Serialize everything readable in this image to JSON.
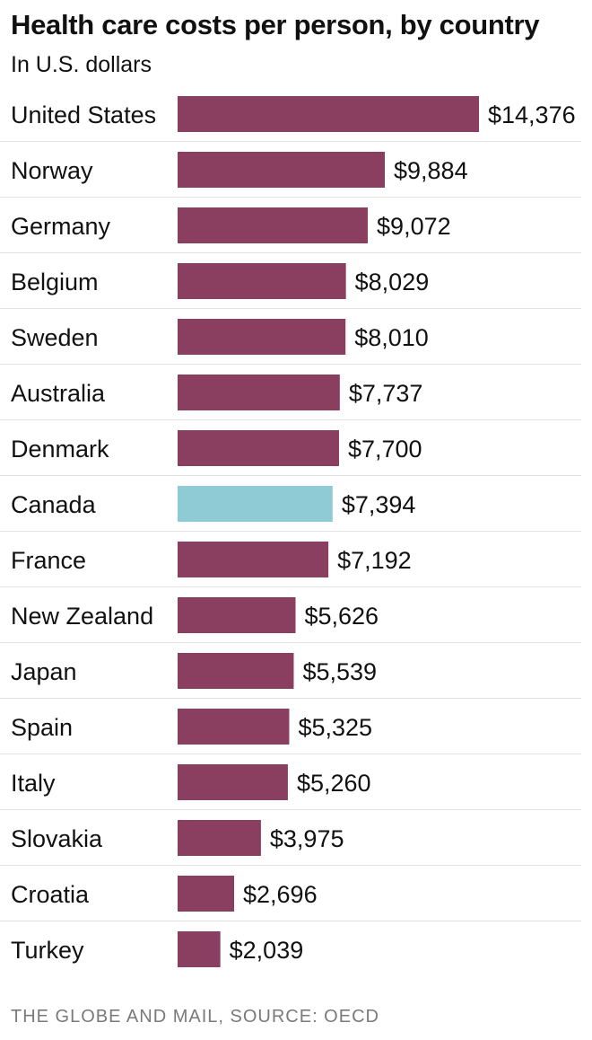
{
  "chart_data": {
    "type": "bar",
    "orientation": "horizontal",
    "title": "Health care costs per person, by country",
    "subtitle": "In U.S. dollars",
    "categories": [
      "United States",
      "Norway",
      "Germany",
      "Belgium",
      "Sweden",
      "Australia",
      "Denmark",
      "Canada",
      "France",
      "New Zealand",
      "Japan",
      "Spain",
      "Italy",
      "Slovakia",
      "Croatia",
      "Turkey"
    ],
    "values": [
      14376,
      9884,
      9072,
      8029,
      8010,
      7737,
      7700,
      7394,
      7192,
      5626,
      5539,
      5325,
      5260,
      3975,
      2696,
      2039
    ],
    "value_labels": [
      "$14,376",
      "$9,884",
      "$9,072",
      "$8,029",
      "$8,010",
      "$7,737",
      "$7,700",
      "$7,394",
      "$7,192",
      "$5,626",
      "$5,539",
      "$5,325",
      "$5,260",
      "$3,975",
      "$2,696",
      "$2,039"
    ],
    "highlight_category": "Canada",
    "bar_color": "#8b3f60",
    "highlight_color": "#8ecbd4",
    "xlim": [
      0,
      14376
    ],
    "grid": false,
    "legend": "none"
  },
  "source": "THE GLOBE AND MAIL, SOURCE: OECD"
}
